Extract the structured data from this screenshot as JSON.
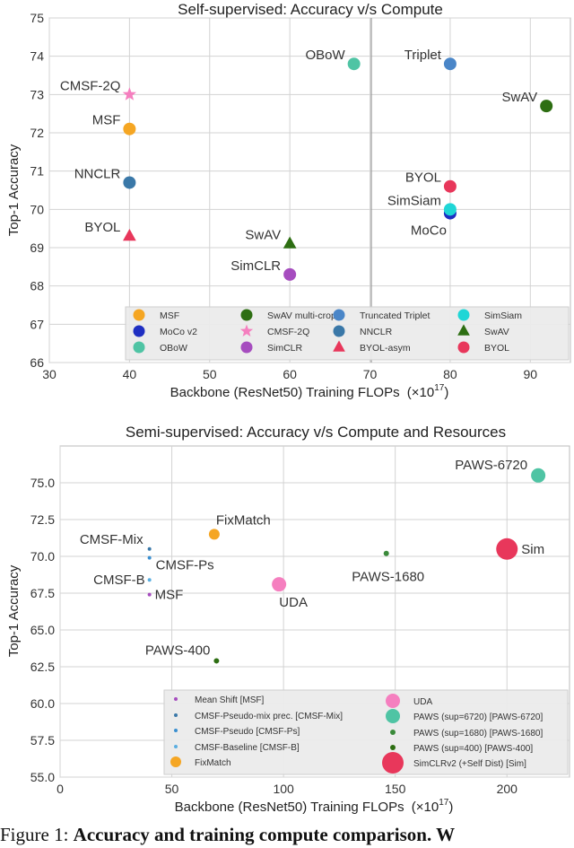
{
  "chart_data": [
    {
      "type": "scatter",
      "title": "Self-supervised: Accuracy v/s Compute",
      "xlabel": "Backbone (ResNet50) Training FLOPs",
      "xlabel_unit_base": "(×10",
      "xlabel_unit_exp": "17",
      "xlabel_unit_end": ")",
      "ylabel": "Top-1 Accuracy",
      "xlim": [
        30,
        95
      ],
      "ylim": [
        66,
        75
      ],
      "xticks": [
        30,
        40,
        50,
        60,
        70,
        80,
        90
      ],
      "yticks": [
        66,
        67,
        68,
        69,
        70,
        71,
        72,
        73,
        74,
        75
      ],
      "xtick_labels": [
        "30",
        "40",
        "50",
        "60",
        "70",
        "80",
        "90"
      ],
      "ytick_labels": [
        "66",
        "67",
        "68",
        "69",
        "70",
        "71",
        "72",
        "73",
        "74",
        "75"
      ],
      "legend_position": "bottom",
      "points": [
        {
          "label": "MSF",
          "legend": "MSF",
          "x": 40,
          "y": 72.1,
          "marker": "circle",
          "color": "#f5a623",
          "anchor": "left"
        },
        {
          "label": "CMSF-2Q",
          "legend": "CMSF-2Q",
          "x": 40,
          "y": 73.0,
          "marker": "star",
          "color": "#f57fbf",
          "anchor": "left"
        },
        {
          "label": "BYOL",
          "legend": "BYOL-asym",
          "x": 40,
          "y": 69.3,
          "marker": "triangle",
          "color": "#e8375b",
          "anchor": "left"
        },
        {
          "label": "MoCo",
          "legend": "MoCo v2",
          "x": 80,
          "y": 69.9,
          "marker": "circle",
          "color": "#1f2fc2",
          "anchor": "below"
        },
        {
          "label": "SimCLR",
          "legend": "SimCLR",
          "x": 60,
          "y": 68.3,
          "marker": "circle",
          "color": "#a64dbf",
          "anchor": "left"
        },
        {
          "label": "SimSiam",
          "legend": "SimSiam",
          "x": 80,
          "y": 70.0,
          "marker": "circle",
          "color": "#1fd6d6",
          "anchor": "left"
        },
        {
          "label": "OBoW",
          "legend": "OBoW",
          "x": 68,
          "y": 73.8,
          "marker": "circle",
          "color": "#4fc4a4",
          "anchor": "left"
        },
        {
          "label": "Triplet",
          "legend": "Truncated Triplet",
          "x": 80,
          "y": 73.8,
          "marker": "circle",
          "color": "#4a86c8",
          "anchor": "left"
        },
        {
          "label": "SwAV",
          "legend": "SwAV",
          "x": 60,
          "y": 69.1,
          "marker": "triangle",
          "color": "#2d6e12",
          "anchor": "left"
        },
        {
          "label": "SwAV",
          "legend": "SwAV multi-crop",
          "x": 92,
          "y": 72.7,
          "marker": "circle",
          "color": "#2d6e12",
          "anchor": "left"
        },
        {
          "label": "NNCLR",
          "legend": "NNCLR",
          "x": 40,
          "y": 70.7,
          "marker": "circle",
          "color": "#3a78a8",
          "anchor": "left"
        },
        {
          "label": "BYOL",
          "legend": "BYOL",
          "x": 80,
          "y": 70.6,
          "marker": "circle",
          "color": "#e8375b",
          "anchor": "left"
        }
      ],
      "legend_order": [
        0,
        3,
        6,
        9,
        1,
        4,
        7,
        10,
        2,
        5,
        8,
        11
      ]
    },
    {
      "type": "scatter",
      "title": "Semi-supervised: Accuracy v/s Compute and Resources",
      "xlabel": "Backbone (ResNet50) Training FLOPs",
      "xlabel_unit_base": "(×10",
      "xlabel_unit_exp": "17",
      "xlabel_unit_end": ")",
      "ylabel": "Top-1 Accuracy",
      "xlim": [
        0,
        228
      ],
      "ylim": [
        55,
        77.5
      ],
      "xticks": [
        0,
        50,
        100,
        150,
        200
      ],
      "yticks": [
        55,
        57.5,
        60,
        62.5,
        65,
        67.5,
        70,
        72.5,
        75
      ],
      "xtick_labels": [
        "0",
        "50",
        "100",
        "150",
        "200"
      ],
      "ytick_labels": [
        "55.0",
        "57.5",
        "60.0",
        "62.5",
        "65.0",
        "67.5",
        "70.0",
        "72.5",
        "75.0"
      ],
      "legend_position": "bottom",
      "points": [
        {
          "label": "MSF",
          "legend": "Mean Shift [MSF]",
          "x": 40,
          "y": 67.4,
          "size": 2,
          "color": "#a64dbf",
          "anchor": "right"
        },
        {
          "label": "CMSF-Mix",
          "legend": "CMSF-Pseudo-mix prec. [CMSF-Mix]",
          "x": 40,
          "y": 70.5,
          "size": 2,
          "color": "#3a78a8",
          "anchor": "left"
        },
        {
          "label": "CMSF-Ps",
          "legend": "CMSF-Pseudo [CMSF-Ps]",
          "x": 40,
          "y": 69.9,
          "size": 2,
          "color": "#3a8fd0",
          "anchor": "right-below"
        },
        {
          "label": "CMSF-B",
          "legend": "CMSF-Baseline [CMSF-B]",
          "x": 40,
          "y": 68.4,
          "size": 2,
          "color": "#5aaee0",
          "anchor": "left"
        },
        {
          "label": "FixMatch",
          "legend": "FixMatch",
          "x": 69,
          "y": 71.5,
          "size": 6,
          "color": "#f5a623",
          "anchor": "above"
        },
        {
          "label": "UDA",
          "legend": "UDA",
          "x": 98,
          "y": 68.1,
          "size": 8,
          "color": "#f57fbf",
          "anchor": "below"
        },
        {
          "label": "PAWS-6720",
          "legend": "PAWS (sup=6720) [PAWS-6720]",
          "x": 214,
          "y": 75.5,
          "size": 8,
          "color": "#4fc4a4",
          "anchor": "above-left"
        },
        {
          "label": "PAWS-1680",
          "legend": "PAWS (sup=1680) [PAWS-1680]",
          "x": 146,
          "y": 70.2,
          "size": 3,
          "color": "#3a8a3a",
          "anchor": "below"
        },
        {
          "label": "PAWS-400",
          "legend": "PAWS (sup=400) [PAWS-400]",
          "x": 70,
          "y": 62.9,
          "size": 3,
          "color": "#2d6e12",
          "anchor": "above-left"
        },
        {
          "label": "Sim",
          "legend": "SimCLRv2 (+Self Dist) [Sim]",
          "x": 200,
          "y": 70.5,
          "size": 12,
          "color": "#e8375b",
          "anchor": "right"
        }
      ],
      "legend_left": [
        0,
        1,
        2,
        3,
        4
      ],
      "legend_right": [
        5,
        6,
        7,
        8,
        9
      ]
    }
  ],
  "caption": {
    "prefix": "Figure 1:",
    "bold": "Accuracy and training compute comparison. W"
  },
  "colors": {
    "axes_bg": "#ffffff",
    "grid": "#cccccc",
    "legend_bg": "#ececec",
    "text": "#333333"
  }
}
